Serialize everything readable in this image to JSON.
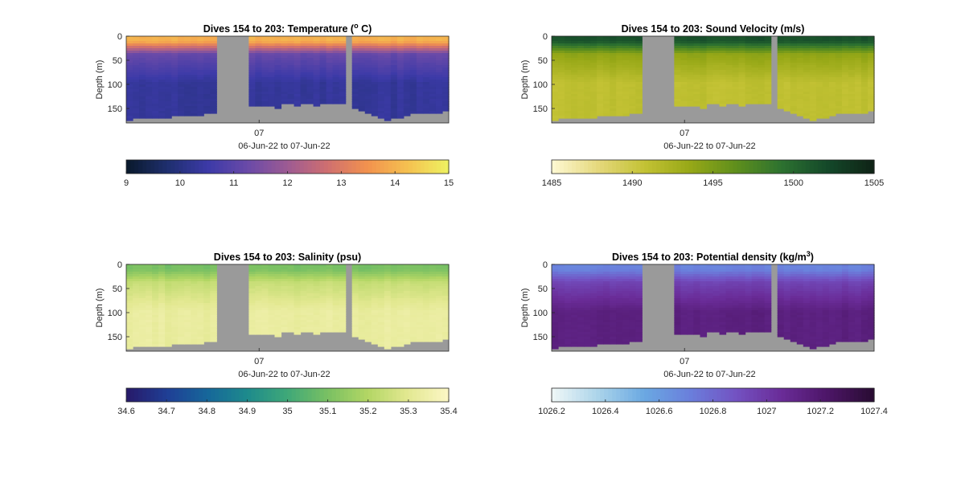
{
  "figure": {
    "background": "#ffffff",
    "panel_fill": "#9a9a9a"
  },
  "chart_data": [
    {
      "type": "heatmap",
      "id": "temperature",
      "title": "Dives 154 to 203: Temperature (",
      "title_sup": "o",
      "title_end": " C)",
      "ylabel": "Depth (m)",
      "xlabel": "06-Jun-22 to 07-Jun-22",
      "x_tick_labels": [
        "07"
      ],
      "y_tick_labels": [
        "0",
        "50",
        "100",
        "150"
      ],
      "ylim": [
        0,
        180
      ],
      "y_reversed": true,
      "colorbar": {
        "range": [
          9,
          15
        ],
        "tick_labels": [
          "9",
          "10",
          "11",
          "12",
          "13",
          "14",
          "15"
        ],
        "colormap": [
          "#0a1a2e",
          "#1f2f6f",
          "#3c3aa8",
          "#6a4aa8",
          "#9d5b93",
          "#cf6f70",
          "#f2924e",
          "#f5c050",
          "#eef060"
        ]
      },
      "column_profile": {
        "surface_value": 14.0,
        "thermocline_value": 11.2,
        "deep_value": 10.3
      }
    },
    {
      "type": "heatmap",
      "id": "sound-velocity",
      "title": "Dives 154 to 203: Sound Velocity (m/s)",
      "ylabel": "Depth (m)",
      "xlabel": "06-Jun-22 to 07-Jun-22",
      "x_tick_labels": [
        "07"
      ],
      "y_tick_labels": [
        "0",
        "50",
        "100",
        "150"
      ],
      "ylim": [
        0,
        180
      ],
      "y_reversed": true,
      "colorbar": {
        "range": [
          1485,
          1505
        ],
        "tick_labels": [
          "1485",
          "1490",
          "1495",
          "1500",
          "1505"
        ],
        "colormap": [
          "#fdf8d0",
          "#e4d77a",
          "#c3c234",
          "#97a817",
          "#5f8f1c",
          "#2d7230",
          "#14492a",
          "#0f2416"
        ]
      },
      "column_profile": {
        "surface_value": 1501.5,
        "thermocline_value": 1494.0,
        "deep_value": 1491.0
      }
    },
    {
      "type": "heatmap",
      "id": "salinity",
      "title": "Dives 154 to 203: Salinity (psu)",
      "ylabel": "Depth (m)",
      "xlabel": "06-Jun-22 to 07-Jun-22",
      "x_tick_labels": [
        "07"
      ],
      "y_tick_labels": [
        "0",
        "50",
        "100",
        "150"
      ],
      "ylim": [
        0,
        180
      ],
      "y_reversed": true,
      "colorbar": {
        "range": [
          34.6,
          35.4
        ],
        "tick_labels": [
          "34.6",
          "34.7",
          "34.8",
          "34.9",
          "35",
          "35.1",
          "35.2",
          "35.3",
          "35.4"
        ],
        "colormap": [
          "#271b6b",
          "#1f3f96",
          "#16679a",
          "#1e8b8c",
          "#3fa878",
          "#79c063",
          "#b2d664",
          "#e2e890",
          "#fbf6c3"
        ]
      },
      "column_profile": {
        "surface_value": 35.1,
        "thermocline_value": 35.24,
        "deep_value": 35.33
      }
    },
    {
      "type": "heatmap",
      "id": "potential-density",
      "title": "Dives 154 to 203: Potential density (kg/m",
      "title_sup": "3",
      "title_end": ")",
      "ylabel": "Depth (m)",
      "xlabel": "06-Jun-22 to 07-Jun-22",
      "x_tick_labels": [
        "07"
      ],
      "y_tick_labels": [
        "0",
        "50",
        "100",
        "150"
      ],
      "ylim": [
        0,
        180
      ],
      "y_reversed": true,
      "colorbar": {
        "range": [
          1026.2,
          1027.4
        ],
        "tick_labels": [
          "1026.2",
          "1026.4",
          "1026.6",
          "1026.8",
          "1027",
          "1027.2",
          "1027.4"
        ],
        "colormap": [
          "#edf6f6",
          "#a9d3ea",
          "#6aa8e2",
          "#6a7fdc",
          "#7352c2",
          "#6a2c98",
          "#4d1668",
          "#2a0c34"
        ]
      },
      "column_profile": {
        "surface_value": 1026.7,
        "thermocline_value": 1026.95,
        "deep_value": 1027.15
      }
    }
  ]
}
